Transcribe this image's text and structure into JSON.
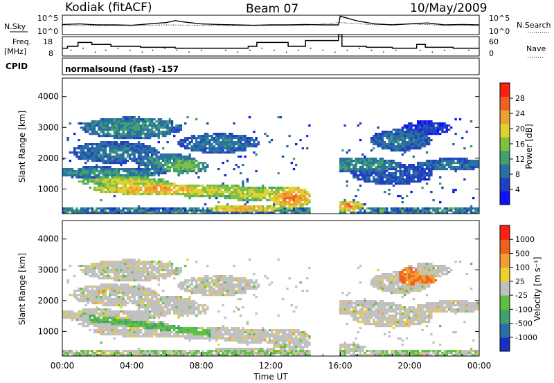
{
  "header": {
    "radar_title": "Kodiak (fitACF)",
    "beam": "Beam 07",
    "date": "10/May/2009"
  },
  "left_labels": {
    "nsky": "N.Sky",
    "freq_line1": "Freq.",
    "freq_line2": "[MHz]",
    "cpid": "CPID"
  },
  "right_labels": {
    "nsearch": "N.Search",
    "nave": "Nave"
  },
  "cpid_text": "normalsound (fast) -157",
  "chart_data": [
    {
      "type": "line",
      "name": "noise",
      "y_ticks_left": [
        "10^5",
        "10^0"
      ],
      "y_ticks_right": [
        "10^5",
        "10^0"
      ],
      "series": [
        {
          "name": "N.Sky",
          "x": [
            0,
            1,
            2,
            3,
            4,
            5,
            6,
            6.5,
            7,
            8,
            9,
            10,
            11,
            12,
            13,
            14,
            15,
            15.9,
            16,
            17,
            18,
            19,
            20,
            21,
            22,
            23,
            24
          ],
          "values": [
            0.52,
            0.55,
            0.5,
            0.5,
            0.48,
            0.55,
            0.62,
            0.72,
            0.65,
            0.55,
            0.52,
            0.5,
            0.48,
            0.5,
            0.5,
            0.52,
            0.5,
            0.5,
            0.95,
            0.7,
            0.55,
            0.5,
            0.55,
            0.6,
            0.5,
            0.52,
            0.5
          ]
        },
        {
          "name": "N.Search",
          "x": [
            0,
            2,
            4,
            6,
            8,
            10,
            12,
            14,
            16,
            18,
            20,
            22,
            24
          ],
          "values": [
            0.48,
            0.46,
            0.47,
            0.5,
            0.48,
            0.46,
            0.47,
            0.48,
            0.62,
            0.5,
            0.55,
            0.48,
            0.47
          ]
        }
      ]
    },
    {
      "type": "line",
      "name": "frequency",
      "y_ticks_left": [
        "18",
        "8"
      ],
      "y_ticks_right": [
        "60",
        "0"
      ],
      "freq_steps": {
        "x": [
          0,
          0.3,
          0.9,
          1.7,
          2.8,
          4.5,
          6.5,
          8.5,
          10.5,
          10.7,
          11.2,
          13.0,
          14.0,
          15.9,
          16.1,
          17.5,
          19.0,
          20.4,
          20.9,
          22.5,
          24
        ],
        "values": [
          12,
          13,
          15,
          14,
          13,
          12.5,
          12,
          12,
          12,
          13,
          15,
          13,
          16,
          19,
          13,
          12.5,
          12,
          14,
          12.5,
          12,
          12
        ]
      },
      "nave_dots": {
        "x": [
          0.5,
          1.2,
          1.9,
          2.5,
          3.2,
          3.9,
          4.6,
          5.2,
          5.9,
          6.6,
          7.3,
          8.0,
          8.7,
          9.4,
          10.1,
          10.8,
          11.5,
          12.2,
          12.9,
          13.6,
          14.3,
          15.0,
          15.7,
          16.4,
          17.1,
          17.8,
          18.5,
          19.2,
          19.9,
          20.6,
          21.3,
          22.0,
          22.7,
          23.4
        ],
        "values": [
          11,
          12,
          10,
          11,
          12,
          11,
          10,
          11,
          12,
          11,
          10,
          11,
          12,
          11,
          10,
          11,
          12,
          11,
          10,
          11,
          12,
          11,
          10,
          11,
          12,
          11,
          10,
          11,
          12,
          11,
          10,
          11,
          12,
          11
        ]
      }
    },
    {
      "type": "heatmap",
      "name": "power",
      "ylabel": "Slant Range [km]",
      "y_ticks": [
        1000,
        2000,
        3000,
        4000
      ],
      "ylim": [
        200,
        4600
      ],
      "colorbar": {
        "label": "Power [dB]",
        "ticks": [
          28,
          24,
          20,
          16,
          12,
          8,
          4
        ],
        "colors": [
          "#1010ff",
          "#2040c0",
          "#2a70a0",
          "#40a070",
          "#80c040",
          "#e0d030",
          "#f0a030",
          "#f06020",
          "#ff2010"
        ]
      },
      "blobs": [
        {
          "t": 4,
          "r": 3000,
          "tw": 2.5,
          "rw": 300,
          "v": 14
        },
        {
          "t": 9,
          "r": 2500,
          "tw": 2.0,
          "rw": 280,
          "v": 12
        },
        {
          "t": 3,
          "r": 2200,
          "tw": 2.2,
          "rw": 300,
          "v": 12
        },
        {
          "t": 2,
          "r": 1550,
          "tw": 3.5,
          "rw": 150,
          "v": 14
        },
        {
          "t": 3.5,
          "r": 1250,
          "tw": 2.2,
          "rw": 140,
          "v": 22
        },
        {
          "t": 5.5,
          "r": 1000,
          "tw": 3.2,
          "rw": 160,
          "v": 26
        },
        {
          "t": 8.5,
          "r": 950,
          "tw": 2.6,
          "rw": 170,
          "v": 22
        },
        {
          "t": 11.5,
          "r": 850,
          "tw": 2.3,
          "rw": 210,
          "v": 22
        },
        {
          "t": 13.2,
          "r": 720,
          "tw": 1.0,
          "rw": 300,
          "v": 28
        },
        {
          "t": 10.5,
          "r": 370,
          "tw": 1.8,
          "rw": 100,
          "v": 26
        },
        {
          "t": 6,
          "r": 1900,
          "tw": 1.5,
          "rw": 230,
          "v": 14
        },
        {
          "t": 7,
          "r": 1750,
          "tw": 1.2,
          "rw": 200,
          "v": 18
        },
        {
          "t": 0.5,
          "r": 320,
          "tw": 0.8,
          "rw": 90,
          "v": 12
        },
        {
          "t": 12,
          "r": 320,
          "tw": 1.5,
          "rw": 90,
          "v": 10
        },
        {
          "t": 17,
          "r": 1800,
          "tw": 2.2,
          "rw": 200,
          "v": 14
        },
        {
          "t": 19,
          "r": 1500,
          "tw": 2.0,
          "rw": 300,
          "v": 10
        },
        {
          "t": 19.5,
          "r": 2600,
          "tw": 1.5,
          "rw": 300,
          "v": 12
        },
        {
          "t": 21,
          "r": 3000,
          "tw": 1.2,
          "rw": 200,
          "v": 8
        },
        {
          "t": 22.5,
          "r": 1800,
          "tw": 1.8,
          "rw": 180,
          "v": 12
        },
        {
          "t": 16.4,
          "r": 450,
          "tw": 0.8,
          "rw": 160,
          "v": 26
        },
        {
          "t": 22,
          "r": 300,
          "tw": 2.0,
          "rw": 90,
          "v": 10
        }
      ]
    },
    {
      "type": "heatmap",
      "name": "velocity",
      "ylabel": "Slant Range [km]",
      "xlabel": "Time UT",
      "x_ticks": [
        "00:00",
        "04:00",
        "08:00",
        "12:00",
        "16:00",
        "20:00",
        "00:00"
      ],
      "y_ticks": [
        1000,
        2000,
        3000,
        4000
      ],
      "ylim": [
        200,
        4600
      ],
      "colorbar": {
        "label": "Velocity [m s⁻¹]",
        "ticks": [
          1000,
          500,
          100,
          25,
          -25,
          -100,
          -500,
          -1000
        ],
        "colors": [
          "#1830c0",
          "#2a70a8",
          "#40a070",
          "#60c040",
          "#c0c0c0",
          "#f0d030",
          "#f0a030",
          "#f06020",
          "#ff2010"
        ]
      },
      "green_band": {
        "t0": 1.5,
        "t1": 8.5,
        "r0": 1450,
        "r1": 950
      },
      "red_patches": [
        {
          "t": 20.0,
          "r": 2800,
          "tw": 0.6,
          "rw": 280
        },
        {
          "t": 21.0,
          "r": 2700,
          "tw": 0.6,
          "rw": 150
        }
      ]
    }
  ]
}
